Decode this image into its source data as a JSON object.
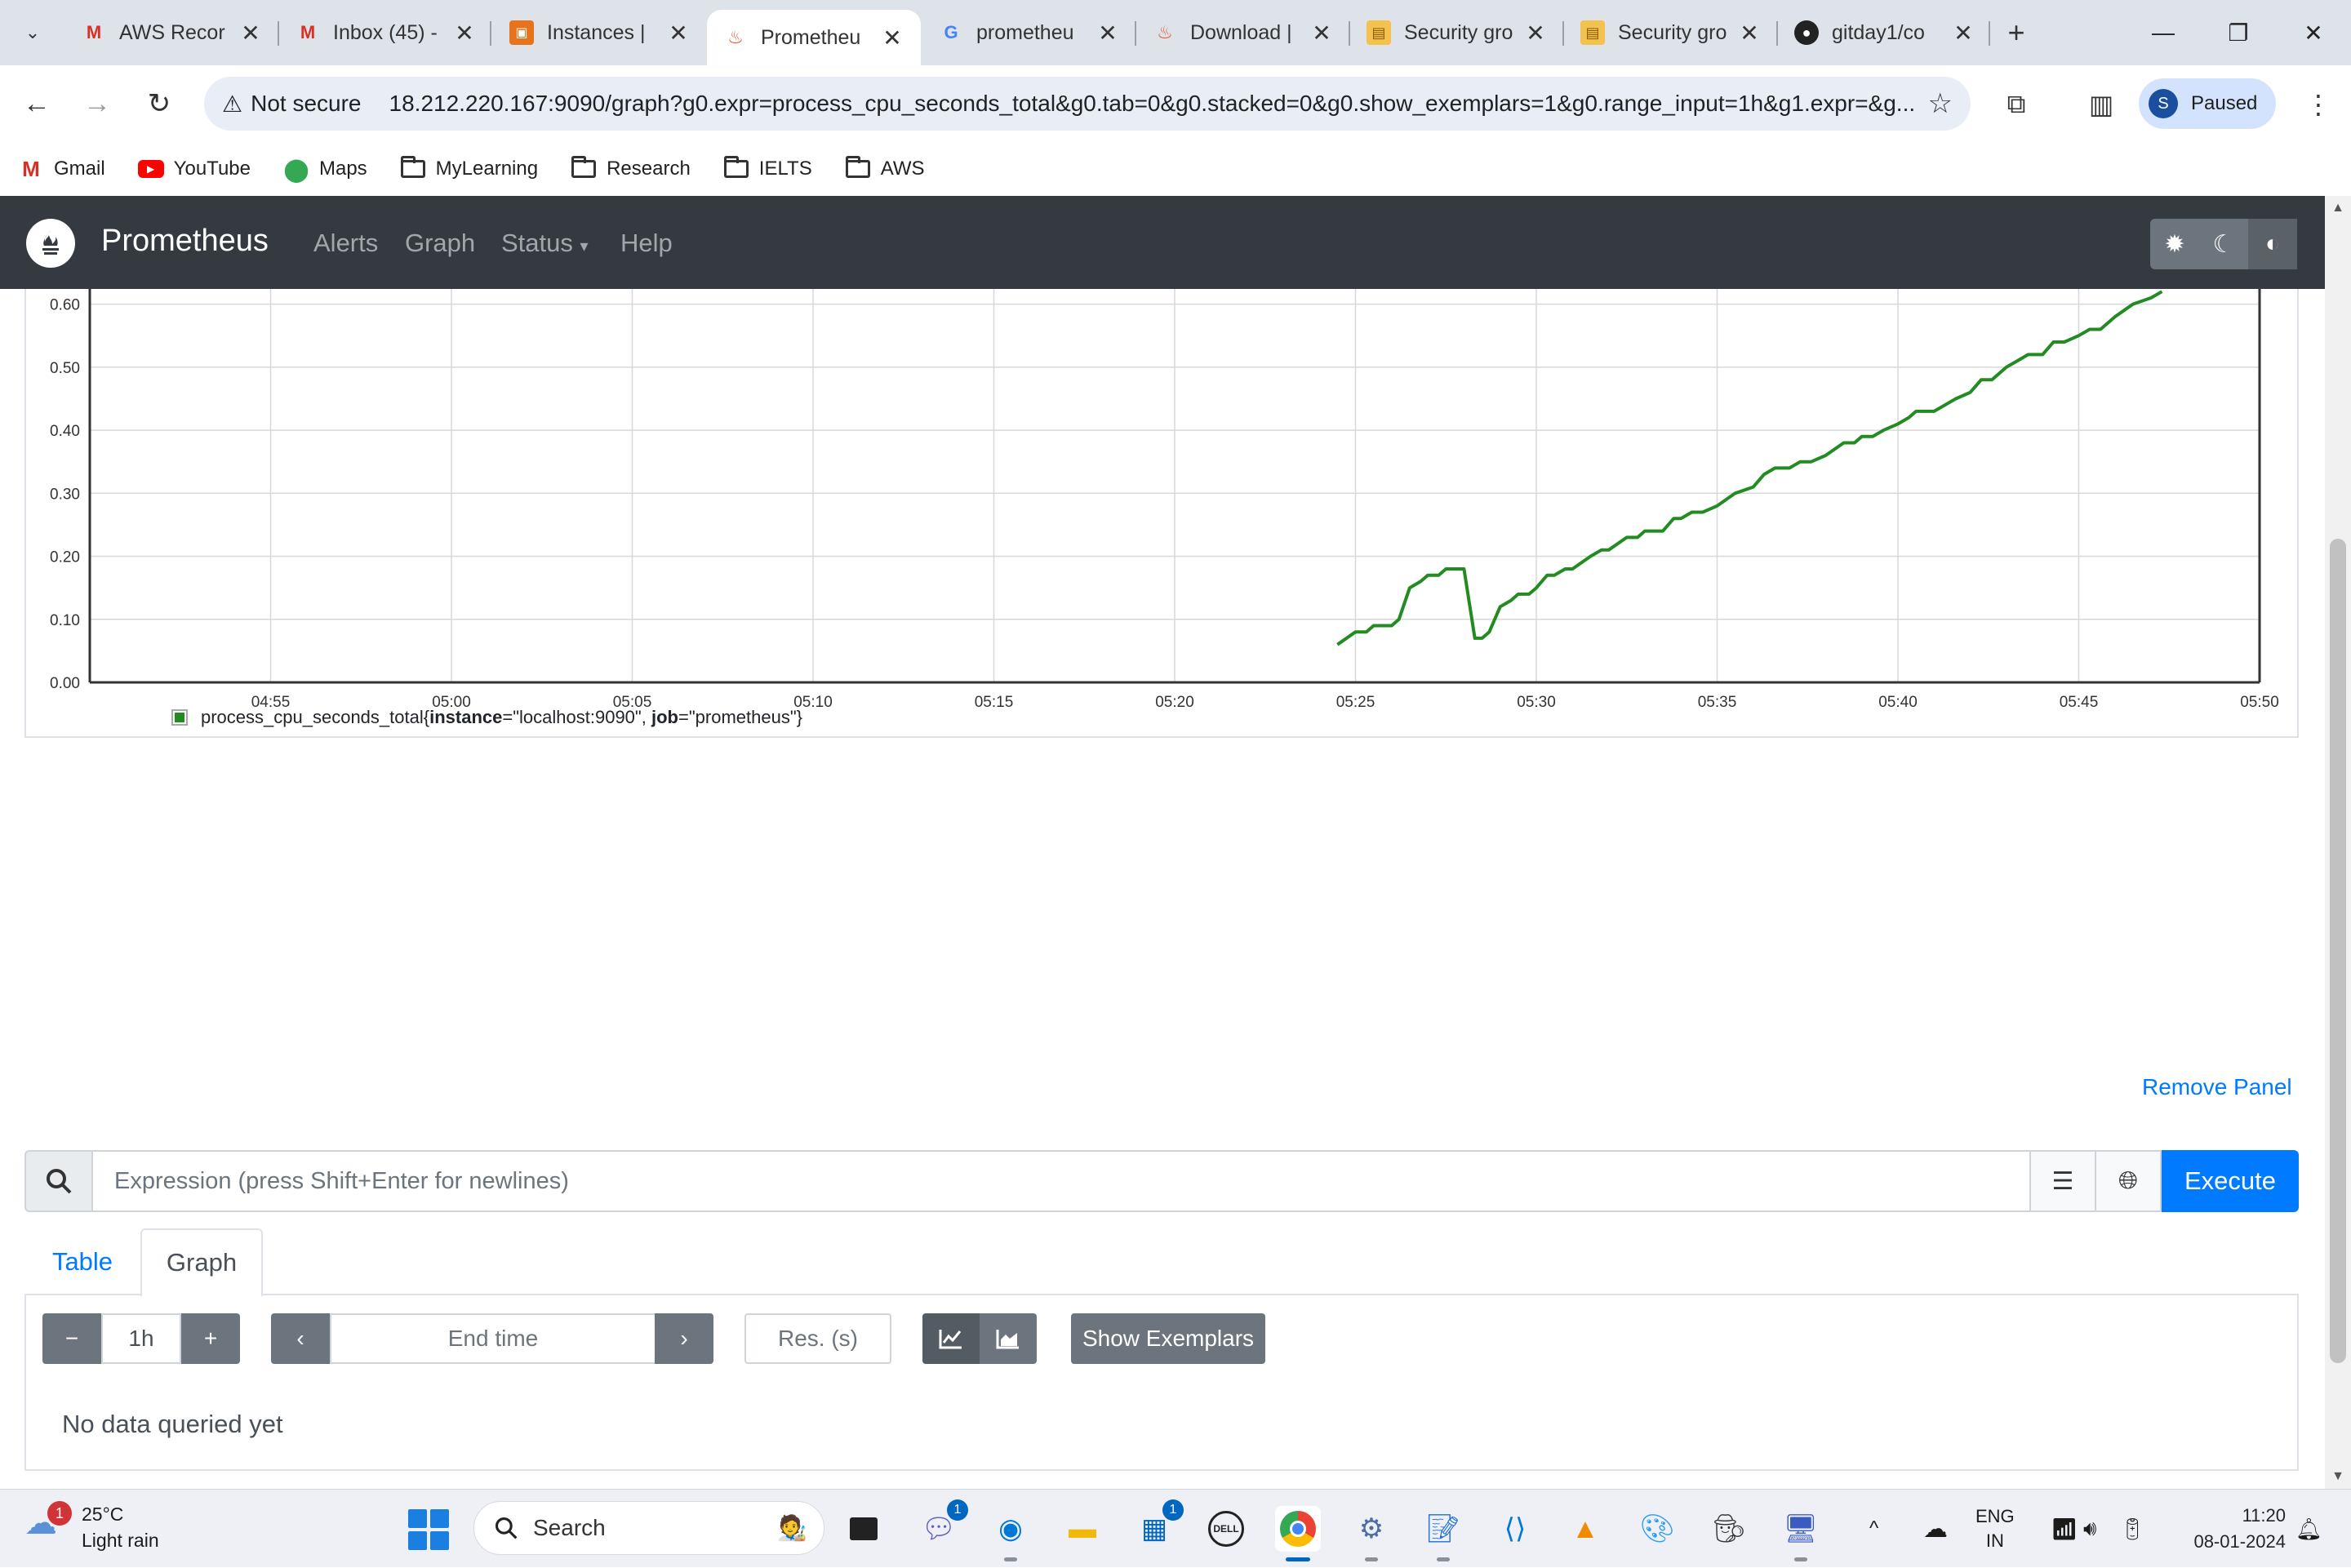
{
  "browser": {
    "tabs": [
      {
        "label": "AWS Recor",
        "icon": "gmail-icon",
        "active": false
      },
      {
        "label": "Inbox (45) -",
        "icon": "gmail-icon",
        "active": false
      },
      {
        "label": "Instances |",
        "icon": "aws-ec2-icon",
        "active": false
      },
      {
        "label": "Prometheu",
        "icon": "prometheus-icon",
        "active": true
      },
      {
        "label": "prometheu",
        "icon": "google-icon",
        "active": false
      },
      {
        "label": "Download |",
        "icon": "prometheus-icon",
        "active": false
      },
      {
        "label": "Security gro",
        "icon": "aws-box-icon",
        "active": false
      },
      {
        "label": "Security gro",
        "icon": "aws-box-icon",
        "active": false
      },
      {
        "label": "gitday1/co",
        "icon": "github-icon",
        "active": false
      }
    ],
    "security_label": "Not secure",
    "url": "18.212.220.167:9090/graph?g0.expr=process_cpu_seconds_total&g0.tab=0&g0.stacked=0&g0.show_exemplars=1&g0.range_input=1h&g1.expr=&g...",
    "profile_initial": "S",
    "profile_status": "Paused",
    "bookmarks": [
      "Gmail",
      "YouTube",
      "Maps",
      "MyLearning",
      "Research",
      "IELTS",
      "AWS"
    ]
  },
  "navbar": {
    "brand": "Prometheus",
    "links": [
      "Alerts",
      "Graph",
      "Status",
      "Help"
    ],
    "colors": {
      "bg": "#343a40",
      "text": "#ffffff"
    }
  },
  "chart_data": {
    "type": "line",
    "x_ticks": [
      "04:55",
      "05:00",
      "05:05",
      "05:10",
      "05:15",
      "05:20",
      "05:25",
      "05:30",
      "05:35",
      "05:40",
      "05:45",
      "05:50"
    ],
    "y_ticks": [
      "0.00",
      "0.10",
      "0.20",
      "0.30",
      "0.40",
      "0.50",
      "0.60"
    ],
    "ylim": [
      0,
      0.62
    ],
    "xlim": [
      "04:50",
      "05:50"
    ],
    "grid": true,
    "legend_position": "bottom-left",
    "series": [
      {
        "name": "process_cpu_seconds_total{instance=\"localhost:9090\", job=\"prometheus\"}",
        "legend": {
          "metric": "process_cpu_seconds_total",
          "instance": "localhost:9090",
          "job": "prometheus"
        },
        "color": "#228b22",
        "points": [
          [
            "05:24.5",
            0.06
          ],
          [
            "05:25.0",
            0.08
          ],
          [
            "05:25.3",
            0.08
          ],
          [
            "05:25.5",
            0.09
          ],
          [
            "05:26.0",
            0.09
          ],
          [
            "05:26.2",
            0.1
          ],
          [
            "05:26.5",
            0.15
          ],
          [
            "05:26.8",
            0.16
          ],
          [
            "05:27.0",
            0.17
          ],
          [
            "05:27.3",
            0.17
          ],
          [
            "05:27.5",
            0.18
          ],
          [
            "05:27.8",
            0.18
          ],
          [
            "05:28.0",
            0.18
          ],
          [
            "05:28.3",
            0.07
          ],
          [
            "05:28.5",
            0.07
          ],
          [
            "05:28.7",
            0.08
          ],
          [
            "05:29.0",
            0.12
          ],
          [
            "05:29.3",
            0.13
          ],
          [
            "05:29.5",
            0.14
          ],
          [
            "05:29.8",
            0.14
          ],
          [
            "05:30.0",
            0.15
          ],
          [
            "05:30.3",
            0.17
          ],
          [
            "05:30.5",
            0.17
          ],
          [
            "05:30.8",
            0.18
          ],
          [
            "05:31.0",
            0.18
          ],
          [
            "05:31.5",
            0.2
          ],
          [
            "05:31.8",
            0.21
          ],
          [
            "05:32.0",
            0.21
          ],
          [
            "05:32.5",
            0.23
          ],
          [
            "05:32.8",
            0.23
          ],
          [
            "05:33.0",
            0.24
          ],
          [
            "05:33.5",
            0.24
          ],
          [
            "05:33.8",
            0.26
          ],
          [
            "05:34.0",
            0.26
          ],
          [
            "05:34.3",
            0.27
          ],
          [
            "05:34.6",
            0.27
          ],
          [
            "05:35.0",
            0.28
          ],
          [
            "05:35.5",
            0.3
          ],
          [
            "05:36.0",
            0.31
          ],
          [
            "05:36.3",
            0.33
          ],
          [
            "05:36.6",
            0.34
          ],
          [
            "05:37.0",
            0.34
          ],
          [
            "05:37.3",
            0.35
          ],
          [
            "05:37.6",
            0.35
          ],
          [
            "05:38.0",
            0.36
          ],
          [
            "05:38.5",
            0.38
          ],
          [
            "05:38.8",
            0.38
          ],
          [
            "05:39.0",
            0.39
          ],
          [
            "05:39.3",
            0.39
          ],
          [
            "05:39.6",
            0.4
          ],
          [
            "05:40.0",
            0.41
          ],
          [
            "05:40.3",
            0.42
          ],
          [
            "05:40.5",
            0.43
          ],
          [
            "05:41.0",
            0.43
          ],
          [
            "05:41.3",
            0.44
          ],
          [
            "05:41.6",
            0.45
          ],
          [
            "05:42.0",
            0.46
          ],
          [
            "05:42.3",
            0.48
          ],
          [
            "05:42.6",
            0.48
          ],
          [
            "05:43.0",
            0.5
          ],
          [
            "05:43.3",
            0.51
          ],
          [
            "05:43.6",
            0.52
          ],
          [
            "05:44.0",
            0.52
          ],
          [
            "05:44.3",
            0.54
          ],
          [
            "05:44.6",
            0.54
          ],
          [
            "05:45.0",
            0.55
          ],
          [
            "05:45.3",
            0.56
          ],
          [
            "05:45.6",
            0.56
          ],
          [
            "05:46.0",
            0.58
          ],
          [
            "05:46.5",
            0.6
          ],
          [
            "05:47.0",
            0.61
          ],
          [
            "05:47.3",
            0.62
          ]
        ]
      }
    ]
  },
  "panel": {
    "remove_label": "Remove Panel",
    "expression_placeholder": "Expression (press Shift+Enter for newlines)",
    "execute_label": "Execute",
    "tabs": [
      "Table",
      "Graph"
    ],
    "active_tab": "Graph",
    "range": "1h",
    "end_time_placeholder": "End time",
    "resolution_placeholder": "Res. (s)",
    "show_exemplars_label": "Show Exemplars",
    "no_data": "No data queried yet"
  },
  "taskbar": {
    "weather_temp": "25°C",
    "weather_desc": "Light rain",
    "weather_alerts": "1",
    "search_label": "Search",
    "lang_top": "ENG",
    "lang_bottom": "IN",
    "time": "11:20",
    "date": "08-01-2024",
    "teams_badge": "1",
    "store_badge": "1"
  }
}
